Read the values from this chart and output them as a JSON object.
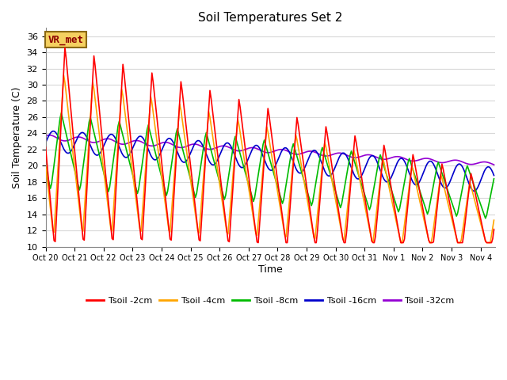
{
  "title": "Soil Temperatures Set 2",
  "xlabel": "Time",
  "ylabel": "Soil Temperature (C)",
  "ylim": [
    10,
    37
  ],
  "yticks": [
    10,
    12,
    14,
    16,
    18,
    20,
    22,
    24,
    26,
    28,
    30,
    32,
    34,
    36
  ],
  "xtick_labels": [
    "Oct 20",
    "Oct 21",
    "Oct 22",
    "Oct 23",
    "Oct 24",
    "Oct 25",
    "Oct 26",
    "Oct 27",
    "Oct 28",
    "Oct 29",
    "Oct 30",
    "Oct 31",
    "Nov 1",
    "Nov 2",
    "Nov 3",
    "Nov 4"
  ],
  "annotation_text": "VR_met",
  "annotation_color": "#8B0000",
  "annotation_bg": "#F5D060",
  "plot_bg": "#FFFFFF",
  "fig_bg": "#FFFFFF",
  "grid_color": "#D8D8D8",
  "series": [
    {
      "label": "Tsoil -2cm",
      "color": "#FF0000",
      "linewidth": 1.2
    },
    {
      "label": "Tsoil -4cm",
      "color": "#FFA500",
      "linewidth": 1.2
    },
    {
      "label": "Tsoil -8cm",
      "color": "#00BB00",
      "linewidth": 1.2
    },
    {
      "label": "Tsoil -16cm",
      "color": "#0000CC",
      "linewidth": 1.2
    },
    {
      "label": "Tsoil -32cm",
      "color": "#9400D3",
      "linewidth": 1.2
    }
  ]
}
